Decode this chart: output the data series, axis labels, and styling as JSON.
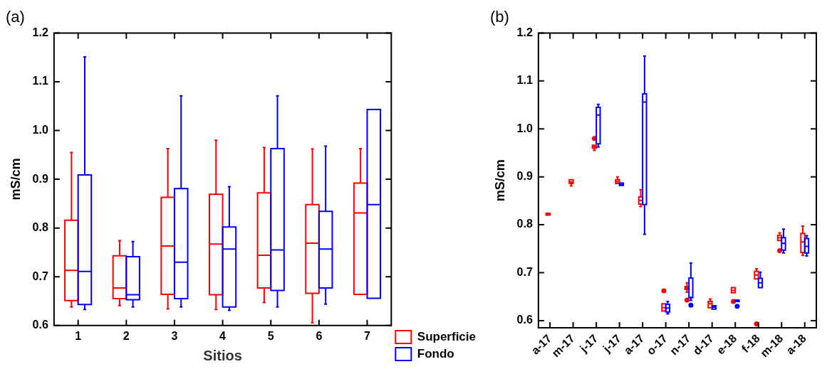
{
  "chart_data": [
    {
      "type": "box",
      "title": "(a)",
      "xlabel": "Sitios",
      "ylabel": "mS/cm",
      "categories": [
        "1",
        "2",
        "3",
        "4",
        "5",
        "6",
        "7"
      ],
      "ylim": [
        0.6,
        1.2
      ],
      "yticks": [
        0.6,
        0.7,
        0.8,
        0.9,
        {
          "value": 1,
          "label": "1.0"
        },
        1.1,
        1.2
      ],
      "grid": false,
      "legend": "right",
      "series": [
        {
          "name": "Superficie",
          "color": "#ff0000",
          "boxes": [
            {
              "low": 0.638,
              "q1": 0.651,
              "median": 0.713,
              "q3": 0.816,
              "high": 0.955
            },
            {
              "low": 0.641,
              "q1": 0.655,
              "median": 0.677,
              "q3": 0.743,
              "high": 0.774
            },
            {
              "low": 0.634,
              "q1": 0.664,
              "median": 0.763,
              "q3": 0.863,
              "high": 0.963
            },
            {
              "low": 0.633,
              "q1": 0.663,
              "median": 0.767,
              "q3": 0.869,
              "high": 0.98
            },
            {
              "low": 0.647,
              "q1": 0.677,
              "median": 0.744,
              "q3": 0.872,
              "high": 0.965
            },
            {
              "low": 0.606,
              "q1": 0.666,
              "median": 0.769,
              "q3": 0.848,
              "high": 0.962
            },
            {
              "low": 0.664,
              "q1": 0.664,
              "median": 0.831,
              "q3": 0.892,
              "high": 0.963
            }
          ]
        },
        {
          "name": "Fondo",
          "color": "#0000ff",
          "boxes": [
            {
              "low": 0.633,
              "q1": 0.643,
              "median": 0.711,
              "q3": 0.909,
              "high": 1.151
            },
            {
              "low": 0.638,
              "q1": 0.653,
              "median": 0.663,
              "q3": 0.741,
              "high": 0.772
            },
            {
              "low": 0.638,
              "q1": 0.655,
              "median": 0.73,
              "q3": 0.881,
              "high": 1.071
            },
            {
              "low": 0.631,
              "q1": 0.638,
              "median": 0.757,
              "q3": 0.802,
              "high": 0.885
            },
            {
              "low": 0.638,
              "q1": 0.672,
              "median": 0.755,
              "q3": 0.963,
              "high": 1.071
            },
            {
              "low": 0.644,
              "q1": 0.677,
              "median": 0.757,
              "q3": 0.834,
              "high": 0.968
            },
            {
              "low": 0.656,
              "q1": 0.656,
              "median": 0.848,
              "q3": 1.043,
              "high": 1.043
            }
          ]
        }
      ]
    },
    {
      "type": "box",
      "title": "(b)",
      "ylabel": "mS/cm",
      "categories": [
        "a-17",
        "m-17",
        "j-17",
        "j-17",
        "a-17",
        "o-17",
        "n-17",
        "d-17",
        "e-18",
        "f-18",
        "m-18",
        "a-18"
      ],
      "ylim": [
        0.585,
        1.2
      ],
      "yticks": [
        0.6,
        0.7,
        0.8,
        0.9,
        {
          "value": 1,
          "label": "1.0"
        },
        1.1,
        1.2
      ],
      "grid": false,
      "series": [
        {
          "color": "#ff0000",
          "boxes": [
            {
              "low": 0.82,
              "q1": 0.82,
              "median": 0.822,
              "q3": 0.824,
              "high": 0.824
            },
            {
              "low": 0.881,
              "q1": 0.886,
              "median": 0.889,
              "q3": 0.894,
              "high": 0.894
            },
            {
              "low": 0.955,
              "q1": 0.96,
              "median": 0.963,
              "q3": 0.966,
              "high": 0.966,
              "outliers": [
                0.98
              ]
            },
            {
              "low": 0.886,
              "q1": 0.886,
              "median": 0.89,
              "q3": 0.894,
              "high": 0.9
            },
            {
              "low": 0.838,
              "q1": 0.843,
              "median": 0.851,
              "q3": 0.858,
              "high": 0.873
            },
            {
              "low": 0.62,
              "q1": 0.62,
              "median": 0.627,
              "q3": 0.635,
              "high": 0.635,
              "outliers": [
                0.662
              ]
            },
            {
              "low": 0.659,
              "q1": 0.665,
              "median": 0.668,
              "q3": 0.671,
              "high": 0.679,
              "outliers": [
                0.643
              ]
            },
            {
              "low": 0.627,
              "q1": 0.627,
              "median": 0.635,
              "q3": 0.64,
              "high": 0.645
            },
            {
              "low": 0.658,
              "q1": 0.658,
              "median": 0.663,
              "q3": 0.669,
              "high": 0.669,
              "outliers": [
                0.64
              ]
            },
            {
              "low": 0.687,
              "q1": 0.687,
              "median": 0.695,
              "q3": 0.703,
              "high": 0.708,
              "outliers": [
                0.593
              ]
            },
            {
              "low": 0.767,
              "q1": 0.767,
              "median": 0.773,
              "q3": 0.778,
              "high": 0.783,
              "outliers": [
                0.746
              ]
            },
            {
              "low": 0.736,
              "q1": 0.742,
              "median": 0.764,
              "q3": 0.782,
              "high": 0.797
            }
          ]
        },
        {
          "color": "#0000ff",
          "boxes": [
            null,
            null,
            {
              "low": 0.962,
              "q1": 0.969,
              "median": 1.029,
              "q3": 1.045,
              "high": 1.051
            },
            {
              "low": 0.882,
              "q1": 0.882,
              "median": 0.884,
              "q3": 0.887,
              "high": 0.887
            },
            {
              "low": 0.78,
              "q1": 0.842,
              "median": 1.056,
              "q3": 1.073,
              "high": 1.152
            },
            {
              "low": 0.614,
              "q1": 0.618,
              "median": 0.626,
              "q3": 0.634,
              "high": 0.64
            },
            {
              "low": 0.642,
              "q1": 0.648,
              "median": 0.648,
              "q3": 0.689,
              "high": 0.72,
              "outliers": [
                0.632
              ]
            },
            {
              "low": 0.624,
              "q1": 0.624,
              "median": 0.628,
              "q3": 0.631,
              "high": 0.631
            },
            {
              "low": 0.64,
              "q1": 0.64,
              "median": 0.641,
              "q3": 0.643,
              "high": 0.643,
              "outliers": [
                0.63
              ]
            },
            {
              "low": 0.669,
              "q1": 0.669,
              "median": 0.679,
              "q3": 0.688,
              "high": 0.701
            },
            {
              "low": 0.741,
              "q1": 0.747,
              "median": 0.761,
              "q3": 0.773,
              "high": 0.791
            },
            {
              "low": 0.735,
              "q1": 0.741,
              "median": 0.755,
              "q3": 0.771,
              "high": 0.777
            }
          ]
        }
      ]
    }
  ]
}
